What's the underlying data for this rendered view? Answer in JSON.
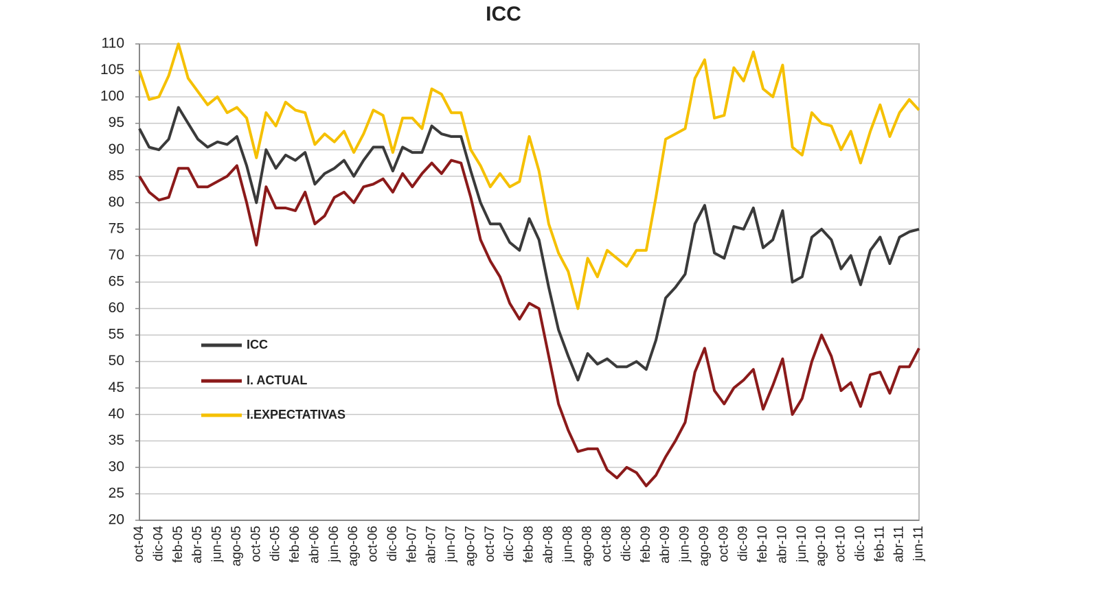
{
  "chart_data": {
    "type": "line",
    "title": "ICC",
    "categories": [
      "oct-04",
      null,
      "dic-04",
      null,
      "feb-05",
      null,
      "abr-05",
      null,
      "jun-05",
      null,
      "ago-05",
      null,
      "oct-05",
      null,
      "dic-05",
      null,
      "feb-06",
      null,
      "abr-06",
      null,
      "jun-06",
      null,
      "ago-06",
      null,
      "oct-06",
      null,
      "dic-06",
      null,
      "feb-07",
      null,
      "abr-07",
      null,
      "jun-07",
      null,
      "ago-07",
      null,
      "oct-07",
      null,
      "dic-07",
      null,
      "feb-08",
      null,
      "abr-08",
      null,
      "jun-08",
      null,
      "ago-08",
      null,
      "oct-08",
      null,
      "dic-08",
      null,
      "feb-09",
      null,
      "abr-09",
      null,
      "jun-09",
      null,
      "ago-09",
      null,
      "oct-09",
      null,
      "dic-09",
      null,
      "feb-10",
      null,
      "abr-10",
      null,
      "jun-10",
      null,
      "ago-10",
      null,
      "oct-10",
      null,
      "dic-10",
      null,
      "feb-11",
      null,
      "abr-11",
      null,
      "jun-11"
    ],
    "series": [
      {
        "name": "ICC",
        "color": "#3a3a3a",
        "values": [
          94,
          90.5,
          90,
          92,
          98,
          95,
          92,
          90.5,
          91.5,
          91,
          92.5,
          87,
          80,
          90,
          86.5,
          89,
          88,
          89.5,
          83.5,
          85.5,
          86.5,
          88,
          85,
          88,
          90.5,
          90.5,
          86,
          90.5,
          89.5,
          89.5,
          94.5,
          93,
          92.5,
          92.5,
          86,
          80,
          76,
          76,
          72.5,
          71,
          77,
          73,
          64,
          56,
          51,
          46.5,
          51.5,
          49.5,
          50.5,
          49,
          49,
          50,
          48.5,
          54,
          62,
          64,
          66.5,
          76,
          79.5,
          70.5,
          69.5,
          75.5,
          75,
          79,
          71.5,
          73,
          78.5,
          65,
          66,
          73.5,
          75,
          73,
          67.5,
          70,
          64.5,
          71,
          73.5,
          68.5,
          73.5,
          74.5,
          75
        ]
      },
      {
        "name": "I. ACTUAL",
        "color": "#8b1a1a",
        "values": [
          85,
          82,
          80.5,
          81,
          86.5,
          86.5,
          83,
          83,
          84,
          85,
          87,
          80,
          72,
          83,
          79,
          79,
          78.5,
          82,
          76,
          77.5,
          81,
          82,
          80,
          83,
          83.5,
          84.5,
          82,
          85.5,
          83,
          85.5,
          87.5,
          85.5,
          88,
          87.5,
          81,
          73,
          69,
          66,
          61,
          58,
          61,
          60,
          51,
          42,
          37,
          33,
          33.5,
          33.5,
          29.5,
          28,
          30,
          29,
          26.5,
          28.5,
          32,
          35,
          38.5,
          48,
          52.5,
          44.5,
          42,
          45,
          46.5,
          48.5,
          41,
          45.5,
          50.5,
          40,
          43,
          50,
          55,
          51,
          44.5,
          46,
          41.5,
          47.5,
          48,
          44,
          49,
          49,
          52.5
        ]
      },
      {
        "name": "I.EXPECTATIVAS",
        "color": "#f5c000",
        "values": [
          105,
          99.5,
          100,
          104,
          110,
          103.5,
          101,
          98.5,
          100,
          97,
          98,
          96,
          88.5,
          97,
          94.5,
          99,
          97.5,
          97,
          91,
          93,
          91.5,
          93.5,
          89.5,
          93,
          97.5,
          96.5,
          89.5,
          96,
          96,
          94,
          101.5,
          100.5,
          97,
          97,
          90,
          87,
          83,
          85.5,
          83,
          84,
          92.5,
          86,
          76,
          70.5,
          67,
          60,
          69.5,
          66,
          71,
          69.5,
          68,
          71,
          71,
          81,
          92,
          93,
          94,
          103.5,
          107,
          96,
          96.5,
          105.5,
          103,
          108.5,
          101.5,
          100,
          106,
          90.5,
          89,
          97,
          95,
          94.5,
          90,
          93.5,
          87.5,
          93.5,
          98.5,
          92.5,
          97,
          99.5,
          97.5
        ]
      }
    ],
    "ylim": [
      20,
      110
    ],
    "yticks": [
      20,
      25,
      30,
      35,
      40,
      45,
      50,
      55,
      60,
      65,
      70,
      75,
      80,
      85,
      90,
      95,
      100,
      105,
      110
    ],
    "grid": true
  }
}
